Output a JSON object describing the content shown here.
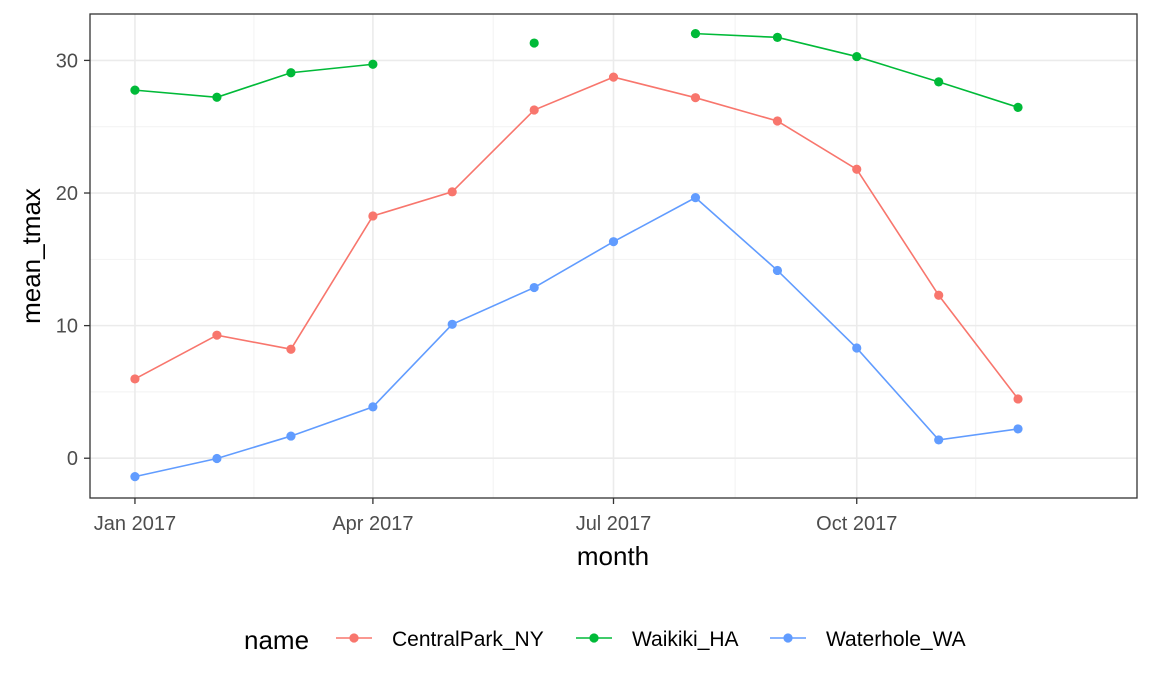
{
  "chart_data": {
    "type": "line",
    "xlabel": "month",
    "ylabel": "mean_tmax",
    "x_tick_labels": [
      "Jan 2017",
      "Apr 2017",
      "Jul 2017",
      "Oct 2017"
    ],
    "x_tick_values": [
      "2017-01-01",
      "2017-04-01",
      "2017-07-01",
      "2017-10-01"
    ],
    "y_tick_labels": [
      "0",
      "10",
      "20",
      "30"
    ],
    "y_tick_values": [
      0,
      10,
      20,
      30
    ],
    "xlim": [
      "2016-12-15",
      "2018-01-15"
    ],
    "ylim": [
      -3,
      33.5
    ],
    "grid": true,
    "legend_position": "bottom",
    "legend_title": "name",
    "x": [
      "2017-01-01",
      "2017-02-01",
      "2017-03-01",
      "2017-04-01",
      "2017-05-01",
      "2017-06-01",
      "2017-07-01",
      "2017-08-01",
      "2017-09-01",
      "2017-10-01",
      "2017-11-01",
      "2017-12-01"
    ],
    "series": [
      {
        "name": "CentralPark_NY",
        "color": "#F8766D",
        "values": [
          5.98,
          9.28,
          8.22,
          18.27,
          20.09,
          26.26,
          28.74,
          27.19,
          25.43,
          21.79,
          12.29,
          4.47
        ]
      },
      {
        "name": "Waikiki_HA",
        "color": "#00BA38",
        "values": [
          27.76,
          27.22,
          29.07,
          29.71,
          null,
          31.31,
          null,
          32.02,
          31.74,
          30.29,
          28.38,
          26.46
        ]
      },
      {
        "name": "Waterhole_WA",
        "color": "#619CFF",
        "values": [
          -1.39,
          -0.02,
          1.67,
          3.87,
          10.1,
          12.87,
          16.33,
          19.65,
          14.16,
          8.31,
          1.38,
          2.21
        ]
      }
    ]
  }
}
